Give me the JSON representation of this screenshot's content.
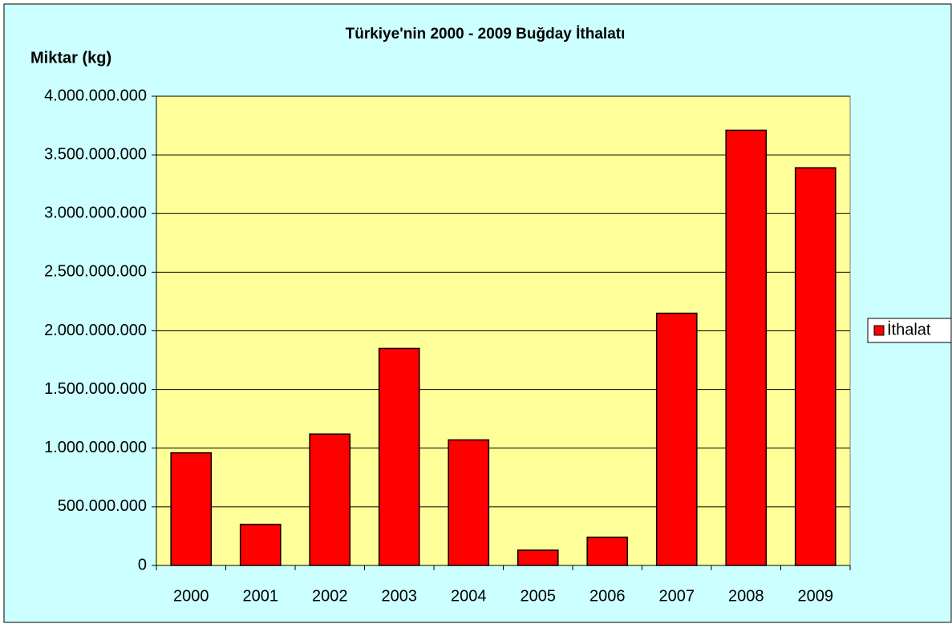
{
  "chart_data": {
    "type": "bar",
    "title": "Türkiye'nin 2000 - 2009 Buğday İthalatı",
    "y_label": "Miktar (kg)",
    "categories": [
      "2000",
      "2001",
      "2002",
      "2003",
      "2004",
      "2005",
      "2006",
      "2007",
      "2008",
      "2009"
    ],
    "series": [
      {
        "name": "İthalat",
        "color": "#ff0000",
        "values": [
          960000000,
          350000000,
          1120000000,
          1850000000,
          1070000000,
          130000000,
          240000000,
          2150000000,
          3710000000,
          3390000000
        ]
      }
    ],
    "ylim": [
      0,
      4000000000
    ],
    "yticks": [
      0,
      {
        "value": 500000000,
        "label": "500.000.000"
      },
      {
        "value": 1000000000,
        "label": "1.000.000.000"
      },
      {
        "value": 1500000000,
        "label": "1.500.000.000"
      },
      {
        "value": 2000000000,
        "label": "2.000.000.000"
      },
      {
        "value": 2500000000,
        "label": "2.500.000.000"
      },
      {
        "value": 3000000000,
        "label": "3.000.000.000"
      },
      {
        "value": 3500000000,
        "label": "3.500.000.000"
      },
      {
        "value": 4000000000,
        "label": "4.000.000.000"
      }
    ],
    "grid": true,
    "legend": "right"
  }
}
